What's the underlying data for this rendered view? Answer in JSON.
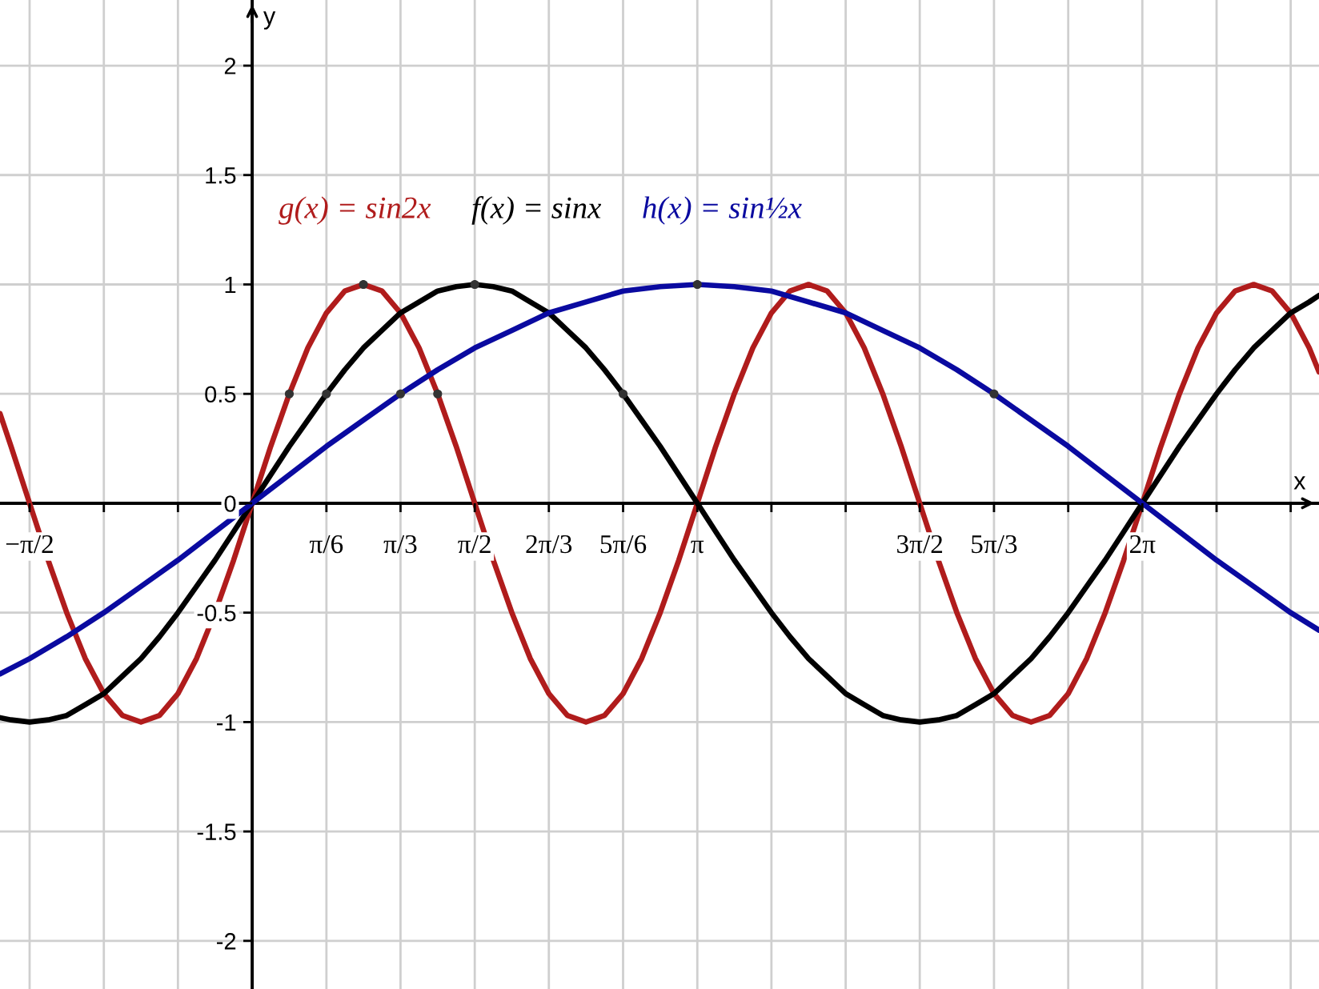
{
  "chart_data": {
    "type": "line",
    "xlabel": "x",
    "ylabel": "y",
    "xlim": [
      -1.78,
      7.53
    ],
    "ylim": [
      -2.22,
      2.3
    ],
    "xticks": [
      {
        "value": -1.571,
        "label": "−π/2"
      },
      {
        "value": -1.047,
        "label": null
      },
      {
        "value": -0.524,
        "label": null
      },
      {
        "value": 0.524,
        "label": "π/6"
      },
      {
        "value": 1.047,
        "label": "π/3"
      },
      {
        "value": 1.571,
        "label": "π/2"
      },
      {
        "value": 2.094,
        "label": "2π/3"
      },
      {
        "value": 2.618,
        "label": "5π/6"
      },
      {
        "value": 3.142,
        "label": "π"
      },
      {
        "value": 3.665,
        "label": null
      },
      {
        "value": 4.189,
        "label": null
      },
      {
        "value": 4.712,
        "label": "3π/2"
      },
      {
        "value": 5.236,
        "label": "5π/3"
      },
      {
        "value": 5.76,
        "label": null
      },
      {
        "value": 6.283,
        "label": "2π"
      },
      {
        "value": 6.807,
        "label": null
      },
      {
        "value": 7.33,
        "label": null
      }
    ],
    "yticks": [
      -2,
      -1.5,
      -1,
      -0.5,
      0,
      0.5,
      1,
      1.5,
      2
    ],
    "grid": true,
    "legend": "top left",
    "x": [
      -1.78,
      -1.702,
      -1.571,
      -1.44,
      -1.309,
      -1.178,
      -1.047,
      -0.916,
      -0.785,
      -0.654,
      -0.524,
      -0.393,
      -0.262,
      -0.131,
      0,
      0.131,
      0.262,
      0.393,
      0.524,
      0.654,
      0.785,
      0.916,
      1.047,
      1.178,
      1.309,
      1.44,
      1.571,
      1.702,
      1.833,
      1.963,
      2.094,
      2.225,
      2.356,
      2.487,
      2.618,
      2.749,
      2.88,
      3.011,
      3.142,
      3.272,
      3.403,
      3.534,
      3.665,
      3.796,
      3.927,
      4.058,
      4.189,
      4.32,
      4.451,
      4.581,
      4.712,
      4.843,
      4.974,
      5.105,
      5.236,
      5.367,
      5.498,
      5.629,
      5.76,
      5.89,
      6.021,
      6.152,
      6.283,
      6.414,
      6.545,
      6.676,
      6.807,
      6.938,
      7.069,
      7.199,
      7.33,
      7.461,
      7.53
    ],
    "series": [
      {
        "name": "g(x) = sin2x",
        "color": "#b01c1c",
        "values": [
          0.41,
          0.26,
          0,
          -0.26,
          -0.5,
          -0.71,
          -0.87,
          -0.97,
          -1,
          -0.97,
          -0.87,
          -0.71,
          -0.5,
          -0.26,
          0,
          0.26,
          0.5,
          0.71,
          0.87,
          0.97,
          1,
          0.97,
          0.87,
          0.71,
          0.5,
          0.26,
          0,
          -0.26,
          -0.5,
          -0.71,
          -0.87,
          -0.97,
          -1,
          -0.97,
          -0.87,
          -0.71,
          -0.5,
          -0.26,
          0,
          0.26,
          0.5,
          0.71,
          0.87,
          0.97,
          1,
          0.97,
          0.87,
          0.71,
          0.5,
          0.26,
          0,
          -0.26,
          -0.5,
          -0.71,
          -0.87,
          -0.97,
          -1,
          -0.97,
          -0.87,
          -0.71,
          -0.5,
          -0.26,
          0,
          0.26,
          0.5,
          0.71,
          0.87,
          0.97,
          1,
          0.97,
          0.87,
          0.71,
          0.6
        ]
      },
      {
        "name": "f(x) = sinx",
        "color": "#000000",
        "values": [
          -0.98,
          -0.99,
          -1,
          -0.99,
          -0.97,
          -0.92,
          -0.87,
          -0.79,
          -0.71,
          -0.61,
          -0.5,
          -0.38,
          -0.26,
          -0.13,
          0,
          0.13,
          0.26,
          0.38,
          0.5,
          0.61,
          0.71,
          0.79,
          0.87,
          0.92,
          0.97,
          0.99,
          1,
          0.99,
          0.97,
          0.92,
          0.87,
          0.79,
          0.71,
          0.61,
          0.5,
          0.38,
          0.26,
          0.13,
          0,
          -0.13,
          -0.26,
          -0.38,
          -0.5,
          -0.61,
          -0.71,
          -0.79,
          -0.87,
          -0.92,
          -0.97,
          -0.99,
          -1,
          -0.99,
          -0.97,
          -0.92,
          -0.87,
          -0.79,
          -0.71,
          -0.61,
          -0.5,
          -0.38,
          -0.26,
          -0.13,
          0,
          0.13,
          0.26,
          0.38,
          0.5,
          0.61,
          0.71,
          0.79,
          0.87,
          0.92,
          0.95
        ]
      },
      {
        "name": "h(x) = sin½x",
        "color": "#0a0aa0",
        "x": [
          -1.78,
          -1.571,
          -1.309,
          -1.047,
          -0.785,
          -0.524,
          -0.262,
          0,
          0.262,
          0.524,
          0.785,
          1.047,
          1.309,
          1.571,
          1.833,
          2.094,
          2.356,
          2.618,
          2.88,
          3.142,
          3.403,
          3.665,
          3.927,
          4.189,
          4.451,
          4.712,
          4.974,
          5.236,
          5.498,
          5.76,
          6.021,
          6.283,
          6.545,
          6.807,
          7.069,
          7.33,
          7.53
        ],
        "values": [
          -0.78,
          -0.71,
          -0.61,
          -0.5,
          -0.38,
          -0.26,
          -0.13,
          0,
          0.13,
          0.26,
          0.38,
          0.5,
          0.61,
          0.71,
          0.79,
          0.87,
          0.92,
          0.97,
          0.99,
          1,
          0.99,
          0.97,
          0.92,
          0.87,
          0.79,
          0.71,
          0.61,
          0.5,
          0.38,
          0.26,
          0.13,
          0,
          -0.13,
          -0.26,
          -0.38,
          -0.5,
          -0.58
        ]
      },
      {
        "type": "scatter",
        "color": "#333333",
        "marker": "circle",
        "x": [
          0.262,
          0.785,
          1.309,
          0.524,
          1.571,
          2.618,
          1.047,
          3.142,
          5.236
        ],
        "values": [
          0.5,
          1,
          0.5,
          0.5,
          1,
          0.5,
          0.5,
          1,
          0.5
        ]
      }
    ]
  }
}
